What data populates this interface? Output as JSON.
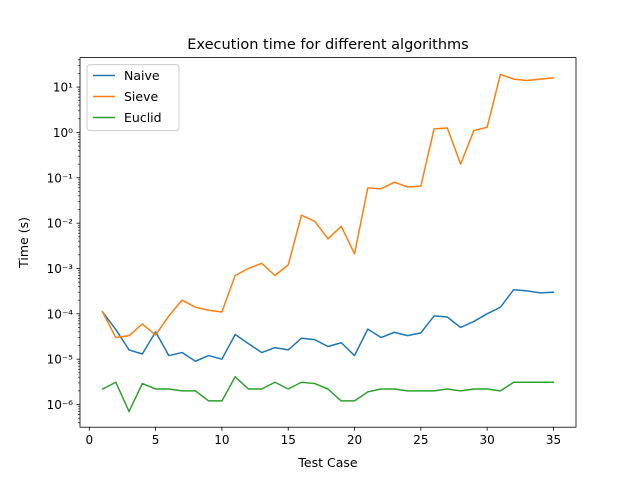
{
  "chart_data": {
    "type": "line",
    "title": "Execution time for different algorithms",
    "xlabel": "Test Case",
    "ylabel": "Time (s)",
    "xscale": "linear",
    "yscale": "log",
    "xlim": [
      -0.7,
      36.7
    ],
    "ylim_log10": [
      -6.5,
      1.65
    ],
    "xticks": [
      0,
      5,
      10,
      15,
      20,
      25,
      30,
      35
    ],
    "yticks_exponent": [
      -6,
      -5,
      -4,
      -3,
      -2,
      -1,
      0,
      1
    ],
    "ytick_labels": [
      "10⁻⁶",
      "10⁻⁵",
      "10⁻⁴",
      "10⁻³",
      "10⁻²",
      "10⁻¹",
      "10⁰",
      "10¹"
    ],
    "grid": false,
    "legend_position": "upper left",
    "x": [
      1,
      2,
      3,
      4,
      5,
      6,
      7,
      8,
      9,
      10,
      11,
      12,
      13,
      14,
      15,
      16,
      17,
      18,
      19,
      20,
      21,
      22,
      23,
      24,
      25,
      26,
      27,
      28,
      29,
      30,
      31,
      32,
      33,
      34,
      35
    ],
    "series": [
      {
        "name": "Naive",
        "color": "#1f77b4",
        "values": [
          0.00011,
          4.5e-05,
          1.6e-05,
          1.3e-05,
          4e-05,
          1.2e-05,
          1.4e-05,
          9e-06,
          1.2e-05,
          1e-05,
          3.5e-05,
          2.2e-05,
          1.4e-05,
          1.8e-05,
          1.6e-05,
          2.9e-05,
          2.7e-05,
          1.9e-05,
          2.3e-05,
          1.2e-05,
          4.6e-05,
          3e-05,
          3.9e-05,
          3.3e-05,
          3.8e-05,
          9e-05,
          8.5e-05,
          5e-05,
          6.8e-05,
          0.0001,
          0.00014,
          0.00034,
          0.00032,
          0.00029,
          0.0003
        ]
      },
      {
        "name": "Sieve",
        "color": "#ff7f0e",
        "values": [
          0.00011,
          3e-05,
          3.3e-05,
          6e-05,
          3.4e-05,
          9e-05,
          0.0002,
          0.00014,
          0.00012,
          0.00011,
          0.0007,
          0.001,
          0.0013,
          0.0007,
          0.0012,
          0.015,
          0.011,
          0.0045,
          0.0085,
          0.0021,
          0.06,
          0.057,
          0.08,
          0.063,
          0.065,
          1.2,
          1.25,
          0.2,
          1.1,
          1.3,
          19.0,
          15.0,
          14.0,
          15.0,
          16.0
        ]
      },
      {
        "name": "Euclid",
        "color": "#2ca02c",
        "values": [
          2.2e-06,
          3.1e-06,
          7e-07,
          2.9e-06,
          2.2e-06,
          2.2e-06,
          2e-06,
          2e-06,
          1.2e-06,
          1.2e-06,
          4.1e-06,
          2.2e-06,
          2.2e-06,
          3.1e-06,
          2.2e-06,
          3.1e-06,
          2.9e-06,
          2.2e-06,
          1.2e-06,
          1.2e-06,
          1.9e-06,
          2.2e-06,
          2.2e-06,
          2e-06,
          2e-06,
          2e-06,
          2.2e-06,
          2e-06,
          2.2e-06,
          2.2e-06,
          2e-06,
          3.1e-06,
          3.1e-06,
          3.1e-06,
          3.1e-06
        ]
      }
    ]
  }
}
